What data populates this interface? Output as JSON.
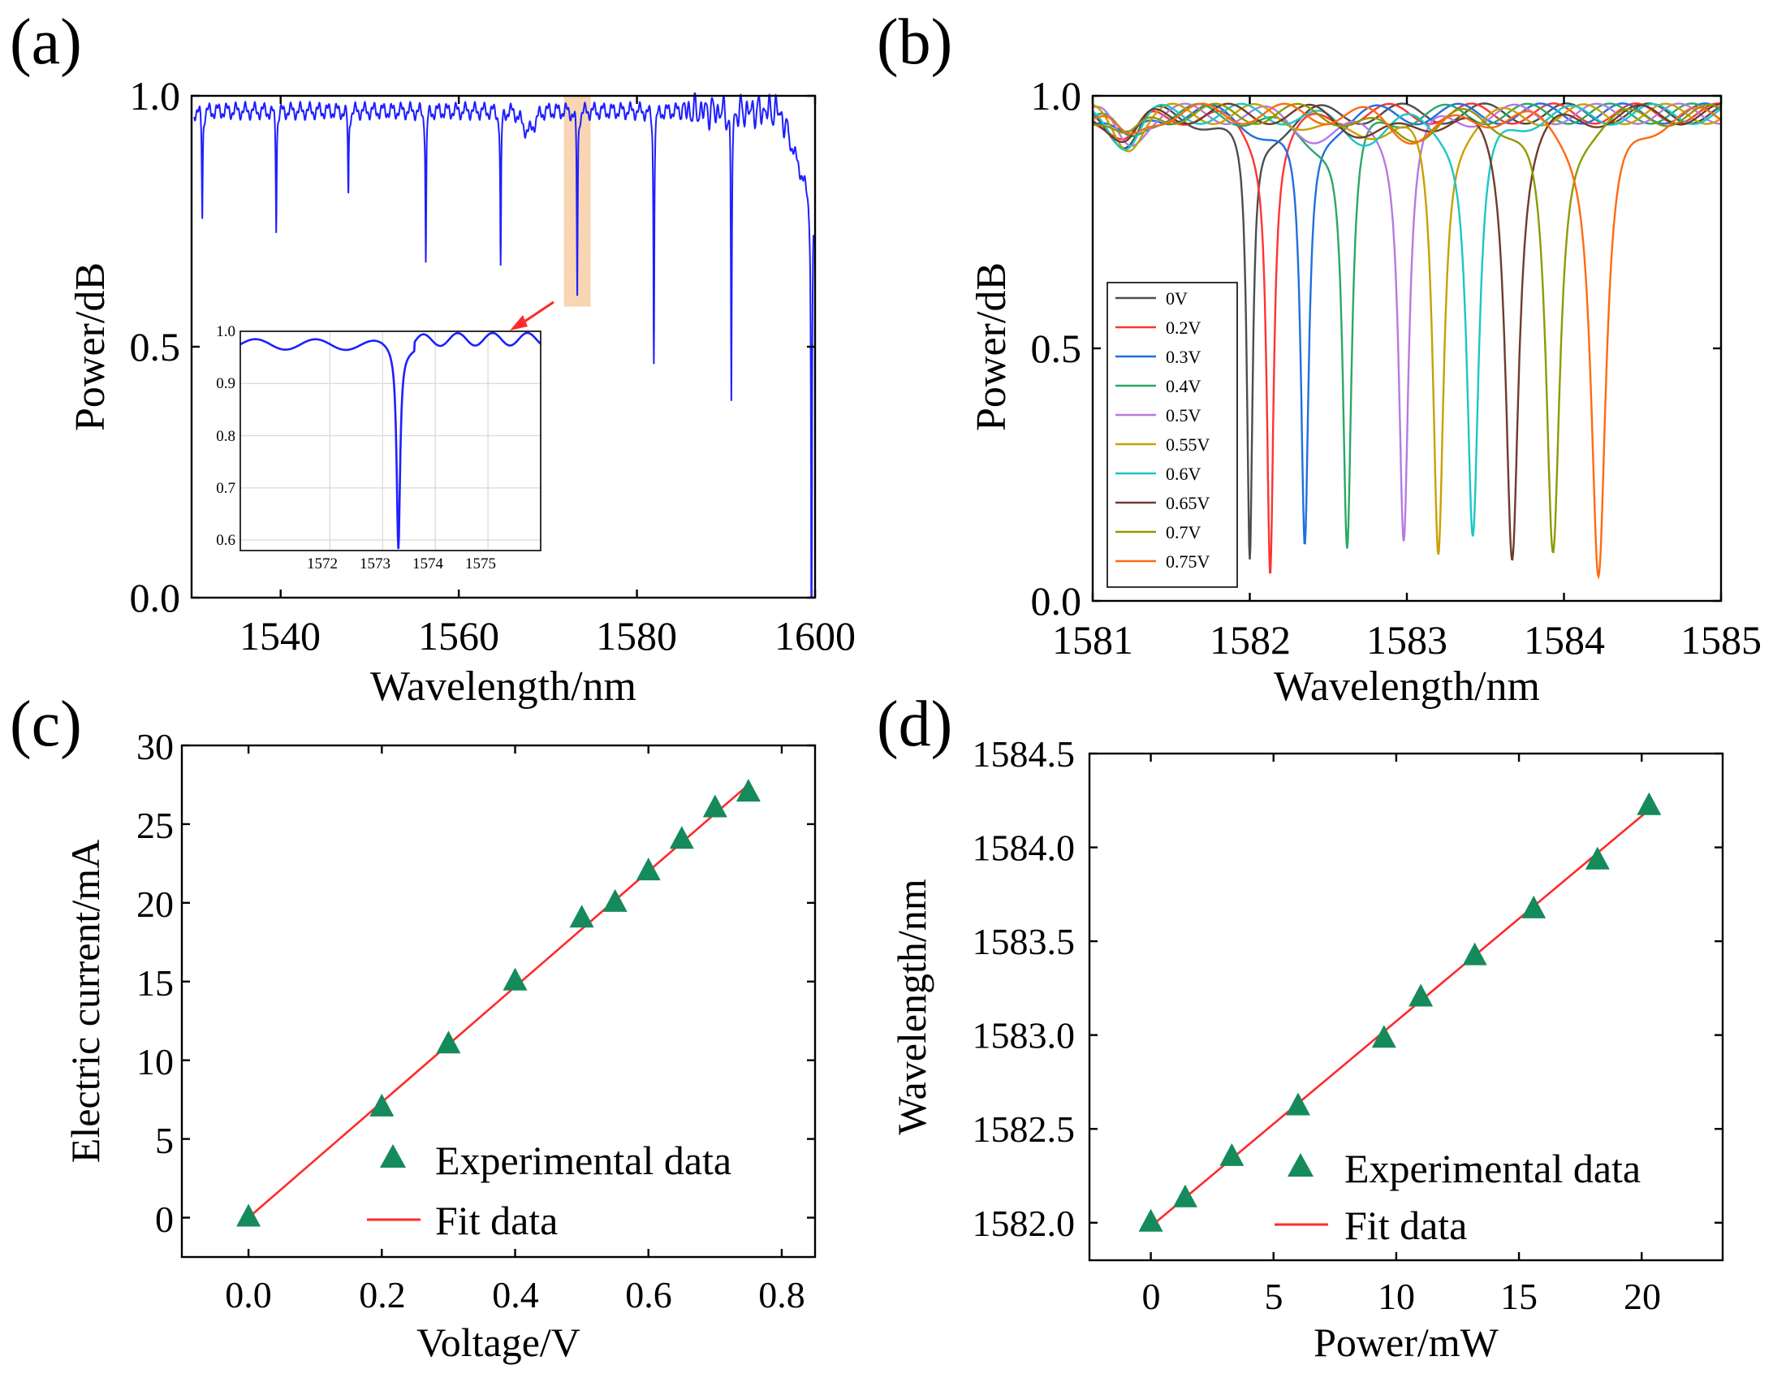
{
  "chart_data": [
    {
      "panel_label": "(a)",
      "type": "line",
      "xlabel": "Wavelength/nm",
      "ylabel": "Power/dB",
      "xlim": [
        1530,
        1600
      ],
      "ylim": [
        0,
        1.0
      ],
      "xticks": [
        1540,
        1560,
        1580,
        1600
      ],
      "yticks": [
        0.0,
        0.5,
        1.0
      ],
      "xtick_labels": [
        "1540",
        "1560",
        "1580",
        "1600"
      ],
      "ytick_labels": [
        "0.0",
        "0.5",
        "1.0"
      ],
      "grid": false,
      "color": "#1f1fff",
      "baseline": 0.97,
      "dips": [
        {
          "x": 1531.2,
          "y": 0.76
        },
        {
          "x": 1539.5,
          "y": 0.74
        },
        {
          "x": 1547.6,
          "y": 0.8
        },
        {
          "x": 1556.3,
          "y": 0.67
        },
        {
          "x": 1564.7,
          "y": 0.65
        },
        {
          "x": 1573.3,
          "y": 0.6
        },
        {
          "x": 1581.9,
          "y": 0.48
        },
        {
          "x": 1590.6,
          "y": 0.39
        },
        {
          "x": 1599.6,
          "y": 0.0
        }
      ],
      "highlight": {
        "x_range": [
          1571.8,
          1574.8
        ],
        "y_range": [
          0.58,
          1.0
        ],
        "color": "#f5c89a"
      },
      "inset": {
        "xlim": [
          1570.3,
          1576.0
        ],
        "ylim": [
          0.58,
          1.0
        ],
        "xticks": [
          1572,
          1573,
          1574,
          1575
        ],
        "yticks": [
          0.6,
          0.7,
          0.8,
          0.9,
          1.0
        ],
        "xtick_labels": [
          "1572",
          "1573",
          "1574",
          "1575"
        ],
        "ytick_labels": [
          "0.6",
          "0.7",
          "0.8",
          "0.9",
          "1.0"
        ],
        "grid": true,
        "dip": {
          "x": 1573.3,
          "y": 0.6
        }
      }
    },
    {
      "panel_label": "(b)",
      "type": "line",
      "xlabel": "Wavelength/nm",
      "ylabel": "Power/dB",
      "xlim": [
        1581,
        1585
      ],
      "ylim": [
        0,
        1.0
      ],
      "xticks": [
        1581,
        1582,
        1583,
        1584,
        1585
      ],
      "yticks": [
        0.0,
        0.5,
        1.0
      ],
      "xtick_labels": [
        "1581",
        "1582",
        "1583",
        "1584",
        "1585"
      ],
      "ytick_labels": [
        "0.0",
        "0.5",
        "1.0"
      ],
      "legend_position": "left",
      "series": [
        {
          "name": "0V",
          "color": "#4d4d4d",
          "dip_x": 1582.0,
          "dip_y": 0.11
        },
        {
          "name": "0.2V",
          "color": "#ff3333",
          "dip_x": 1582.13,
          "dip_y": 0.11
        },
        {
          "name": "0.3V",
          "color": "#1f6fe0",
          "dip_x": 1582.35,
          "dip_y": 0.13
        },
        {
          "name": "0.4V",
          "color": "#2aa866",
          "dip_x": 1582.62,
          "dip_y": 0.11
        },
        {
          "name": "0.5V",
          "color": "#b77ae0",
          "dip_x": 1582.98,
          "dip_y": 0.13
        },
        {
          "name": "0.55V",
          "color": "#c9a000",
          "dip_x": 1583.2,
          "dip_y": 0.09
        },
        {
          "name": "0.6V",
          "color": "#19c7c7",
          "dip_x": 1583.42,
          "dip_y": 0.12
        },
        {
          "name": "0.65V",
          "color": "#6e3b2c",
          "dip_x": 1583.67,
          "dip_y": 0.1
        },
        {
          "name": "0.7V",
          "color": "#8f9a00",
          "dip_x": 1583.93,
          "dip_y": 0.08
        },
        {
          "name": "0.75V",
          "color": "#ff6a10",
          "dip_x": 1584.22,
          "dip_y": 0.04
        }
      ]
    },
    {
      "panel_label": "(c)",
      "type": "scatter",
      "xlabel": "Voltage/V",
      "ylabel": "Electric current/mA",
      "xlim": [
        -0.1,
        0.85
      ],
      "ylim": [
        -2.5,
        30
      ],
      "xticks": [
        0.0,
        0.2,
        0.4,
        0.6,
        0.8
      ],
      "yticks": [
        0,
        5,
        10,
        15,
        20,
        25,
        30
      ],
      "xtick_labels": [
        "0.0",
        "0.2",
        "0.4",
        "0.6",
        "0.8"
      ],
      "ytick_labels": [
        "0",
        "5",
        "10",
        "15",
        "20",
        "25",
        "30"
      ],
      "series": [
        {
          "name": "Experimental data",
          "marker": "triangle",
          "color": "#158a5a",
          "x": [
            0.0,
            0.2,
            0.3,
            0.4,
            0.5,
            0.55,
            0.6,
            0.65,
            0.7,
            0.75
          ],
          "y": [
            0,
            7,
            11,
            15,
            19,
            20,
            22,
            24,
            26,
            27
          ]
        },
        {
          "name": "Fit data",
          "line": true,
          "color": "#ff2a2a",
          "x": [
            0.0,
            0.75
          ],
          "y": [
            0.0,
            27.5
          ]
        }
      ],
      "legend_position": "bottom-right"
    },
    {
      "panel_label": "(d)",
      "type": "scatter",
      "xlabel": "Power/mW",
      "ylabel": "Wavelength/nm",
      "xlim": [
        -2.5,
        23.3
      ],
      "ylim": [
        1581.8,
        1584.5
      ],
      "xticks": [
        0,
        5,
        10,
        15,
        20
      ],
      "yticks": [
        1582.0,
        1582.5,
        1583.0,
        1583.5,
        1584.0,
        1584.5
      ],
      "xtick_labels": [
        "0",
        "5",
        "10",
        "15",
        "20"
      ],
      "ytick_labels": [
        "1582.0",
        "1582.5",
        "1583.0",
        "1583.5",
        "1584.0",
        "1584.5"
      ],
      "series": [
        {
          "name": "Experimental data",
          "marker": "triangle",
          "color": "#158a5a",
          "x": [
            0.0,
            1.4,
            3.3,
            6.0,
            9.5,
            11.0,
            13.2,
            15.6,
            18.2,
            20.3
          ],
          "y": [
            1582.0,
            1582.13,
            1582.35,
            1582.62,
            1582.98,
            1583.2,
            1583.42,
            1583.67,
            1583.93,
            1584.22
          ]
        },
        {
          "name": "Fit data",
          "line": true,
          "color": "#ff2a2a",
          "x": [
            0.0,
            20.3
          ],
          "y": [
            1581.98,
            1584.2
          ]
        }
      ],
      "legend_position": "bottom-right"
    }
  ]
}
